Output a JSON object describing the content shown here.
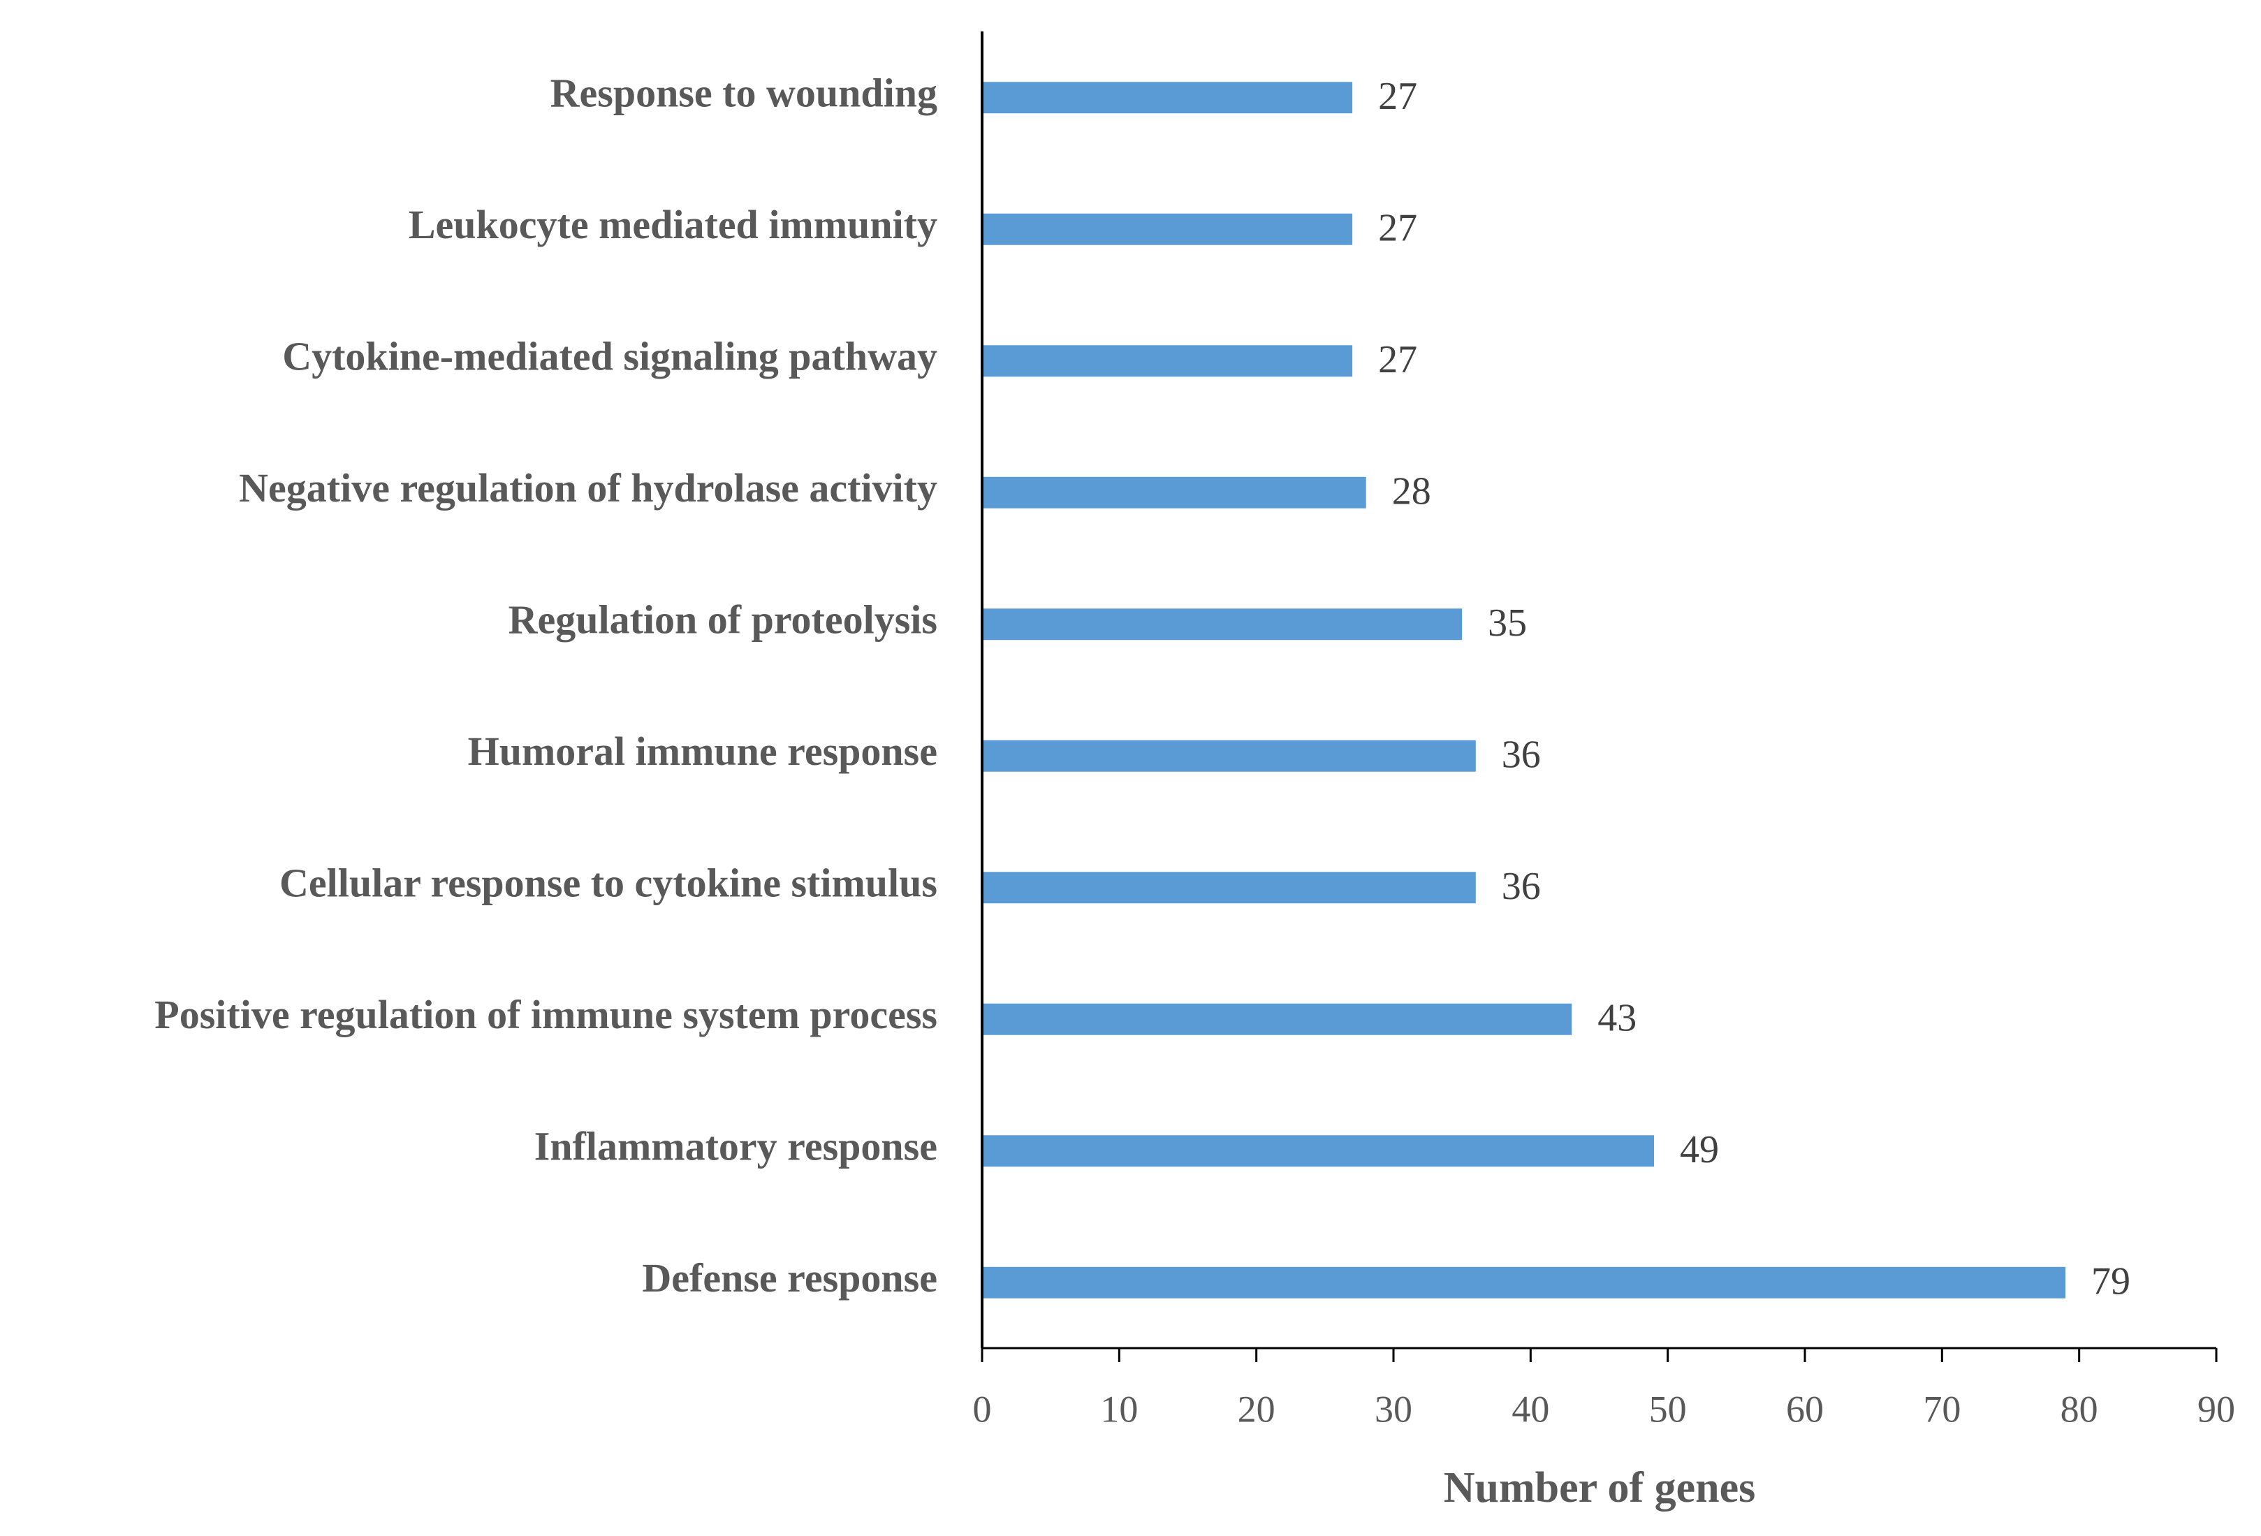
{
  "chart_data": {
    "type": "barh",
    "x_label": "Number of genes",
    "categories": [
      "Response to wounding",
      "Leukocyte mediated immunity",
      "Cytokine-mediated signaling pathway",
      "Negative regulation of hydrolase activity",
      "Regulation of proteolysis",
      "Humoral immune response",
      "Cellular response to cytokine stimulus",
      "Positive regulation of immune system process",
      "Inflammatory response",
      "Defense response"
    ],
    "values": [
      27,
      27,
      27,
      28,
      35,
      36,
      36,
      43,
      49,
      79
    ],
    "color": "#5b9bd5",
    "xlim": [
      0,
      90
    ],
    "xticks": [
      0,
      10,
      20,
      30,
      40,
      50,
      60,
      70,
      80,
      90
    ],
    "grid": false
  }
}
